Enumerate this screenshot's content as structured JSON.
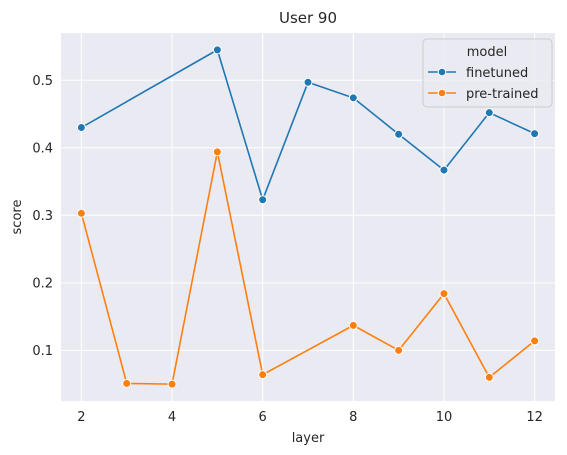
{
  "chart_data": {
    "type": "line",
    "title": "User 90",
    "xlabel": "layer",
    "ylabel": "score",
    "xlim": [
      1.55,
      12.45
    ],
    "ylim": [
      0.025,
      0.57
    ],
    "x_ticks": [
      2,
      4,
      6,
      8,
      10,
      12
    ],
    "y_ticks": [
      0.1,
      0.2,
      0.3,
      0.4,
      0.5
    ],
    "grid": true,
    "legend": {
      "title": "model",
      "placement": "top-right"
    },
    "series": [
      {
        "name": "finetuned",
        "color": "#1f77b4",
        "x": [
          2,
          5,
          6,
          7,
          8,
          9,
          10,
          11,
          12
        ],
        "y": [
          0.43,
          0.545,
          0.323,
          0.497,
          0.474,
          0.42,
          0.367,
          0.452,
          0.421
        ]
      },
      {
        "name": "pre-trained",
        "color": "#ff7f0e",
        "x": [
          2,
          3,
          4,
          5,
          6,
          8,
          9,
          10,
          11,
          12
        ],
        "y": [
          0.303,
          0.051,
          0.05,
          0.394,
          0.064,
          0.137,
          0.1,
          0.184,
          0.06,
          0.114
        ]
      }
    ]
  }
}
